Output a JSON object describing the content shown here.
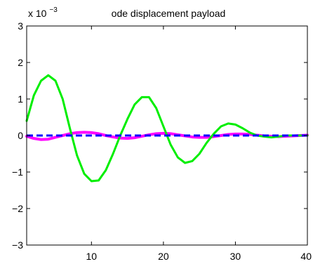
{
  "chart_data": {
    "type": "line",
    "title": "ode displacement payload",
    "xlabel": "",
    "ylabel": "",
    "y_multiplier": {
      "base": "x 10",
      "exponent": "−3"
    },
    "xlim": [
      1,
      40
    ],
    "ylim": [
      -3,
      3
    ],
    "x_ticks": [
      {
        "value": 10,
        "label": "10"
      },
      {
        "value": 20,
        "label": "20"
      },
      {
        "value": 30,
        "label": "30"
      },
      {
        "value": 40,
        "label": "40"
      }
    ],
    "y_ticks": [
      {
        "value": 3,
        "label": "3"
      },
      {
        "value": 2,
        "label": "2"
      },
      {
        "value": 1,
        "label": "1"
      },
      {
        "value": 0,
        "label": "0"
      },
      {
        "value": -1,
        "label": "−1"
      },
      {
        "value": -2,
        "label": "−2"
      },
      {
        "value": -3,
        "label": "−3"
      }
    ],
    "grid": false,
    "legend": "none",
    "series": [
      {
        "color": "#ff00ff",
        "style": "solid-thick",
        "x": [
          1,
          2,
          3,
          4,
          5,
          6,
          7,
          8,
          9,
          10,
          11,
          12,
          13,
          14,
          15,
          16,
          17,
          18,
          19,
          20,
          21,
          22,
          23,
          24,
          25,
          26,
          27,
          28,
          29,
          30,
          31,
          32,
          33,
          34,
          35,
          36,
          37,
          38,
          39,
          40
        ],
        "y": [
          -0.02,
          -0.08,
          -0.11,
          -0.1,
          -0.05,
          0.0,
          0.05,
          0.08,
          0.09,
          0.08,
          0.05,
          0.0,
          -0.04,
          -0.07,
          -0.08,
          -0.06,
          -0.02,
          0.02,
          0.05,
          0.06,
          0.05,
          0.02,
          -0.01,
          -0.04,
          -0.05,
          -0.05,
          -0.03,
          0.0,
          0.03,
          0.04,
          0.04,
          0.03,
          0.01,
          -0.01,
          -0.02,
          -0.03,
          -0.02,
          -0.01,
          0.0,
          0.01
        ]
      },
      {
        "color": "#00ee00",
        "style": "solid",
        "x": [
          1,
          2,
          3,
          4,
          5,
          6,
          7,
          8,
          9,
          10,
          11,
          12,
          13,
          14,
          15,
          16,
          17,
          18,
          19,
          20,
          21,
          22,
          23,
          24,
          25,
          26,
          27,
          28,
          29,
          30,
          31,
          32,
          33,
          34,
          35,
          36,
          37,
          38,
          39,
          40
        ],
        "y": [
          0.4,
          1.1,
          1.5,
          1.65,
          1.5,
          1.0,
          0.2,
          -0.55,
          -1.05,
          -1.25,
          -1.23,
          -0.95,
          -0.5,
          0.0,
          0.45,
          0.85,
          1.05,
          1.05,
          0.75,
          0.25,
          -0.25,
          -0.6,
          -0.75,
          -0.7,
          -0.5,
          -0.2,
          0.05,
          0.25,
          0.33,
          0.3,
          0.2,
          0.08,
          0.0,
          -0.03,
          -0.05,
          -0.03,
          0.0,
          0.0,
          0.0,
          0.0
        ]
      },
      {
        "color": "#0000ff",
        "style": "dashed",
        "x": [
          1,
          40
        ],
        "y": [
          0.0,
          0.0
        ]
      }
    ]
  }
}
